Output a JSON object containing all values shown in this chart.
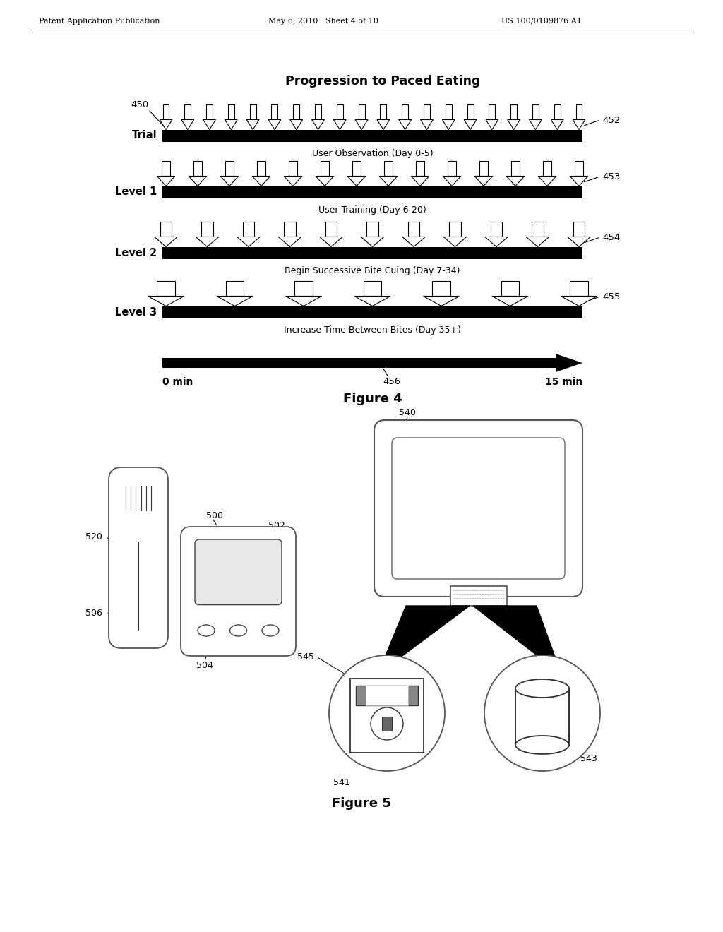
{
  "header_left": "Patent Application Publication",
  "header_mid": "May 6, 2010   Sheet 4 of 10",
  "header_right": "US 100/0109876 A1",
  "fig4_title": "Progression to Paced Eating",
  "fig4_label": "Figure 4",
  "fig5_label": "Figure 5",
  "rows": [
    {
      "label": "Trial",
      "desc": "User Observation (Day 0-5)",
      "n_arrows": 20,
      "ref": "452"
    },
    {
      "label": "Level 1",
      "desc": "User Training (Day 6-20)",
      "n_arrows": 14,
      "ref": "453"
    },
    {
      "label": "Level 2",
      "desc": "Begin Successive Bite Cuing (Day 7-34)",
      "n_arrows": 11,
      "ref": "454"
    },
    {
      "label": "Level 3",
      "desc": "Increase Time Between Bites (Day 35+)",
      "n_arrows": 7,
      "ref": "455"
    }
  ],
  "ref_450": "450",
  "ref_456": "456",
  "time_start": "0 min",
  "time_end": "15 min",
  "bg_color": "#ffffff",
  "bar_color": "#000000",
  "arrow_fill": "#ffffff",
  "arrow_edge": "#000000"
}
